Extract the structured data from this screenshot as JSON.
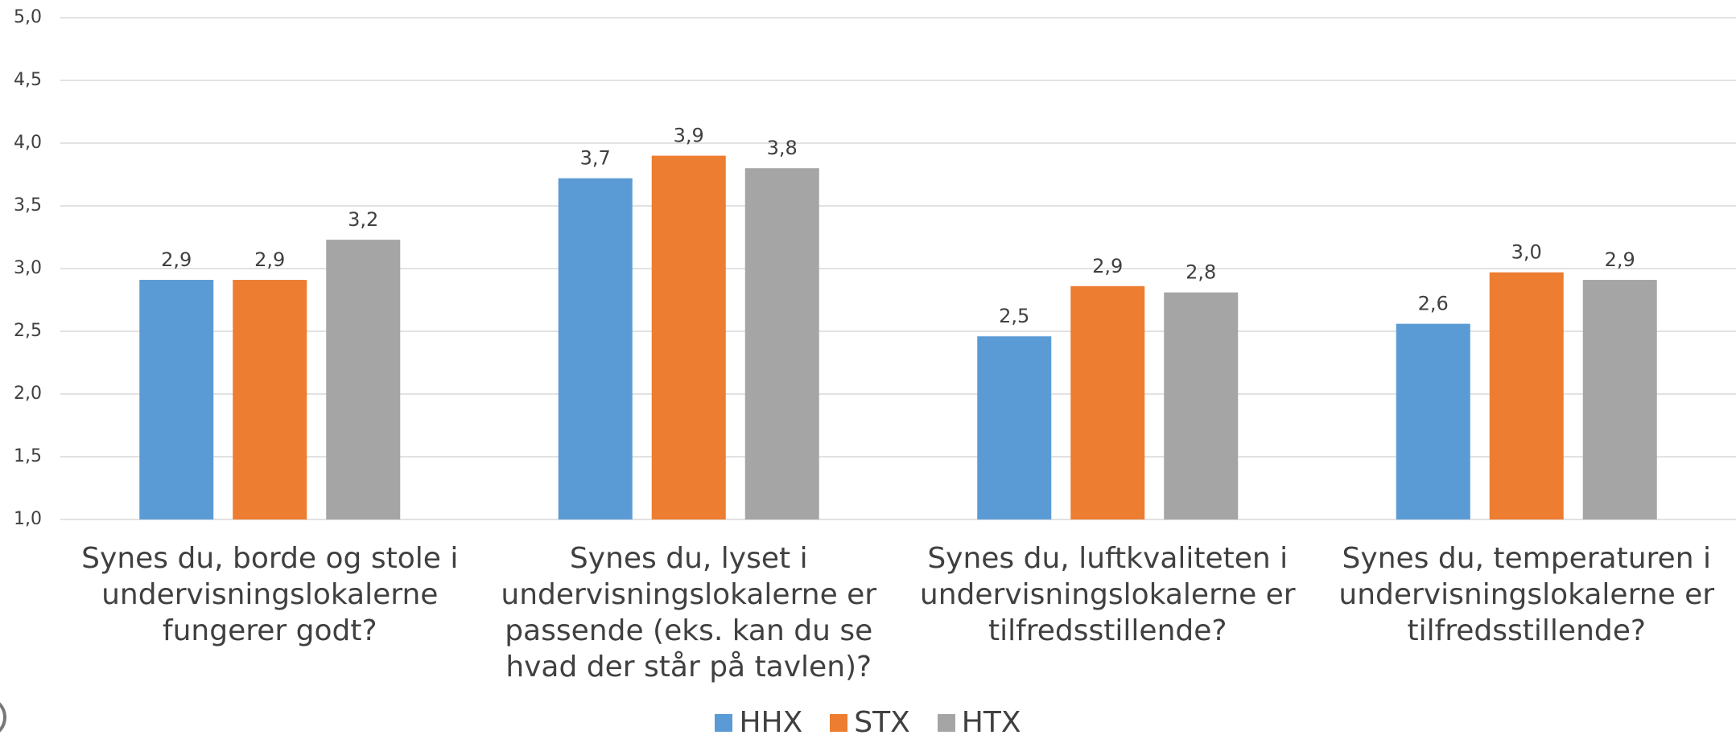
{
  "chart_data": {
    "type": "bar",
    "categories": [
      "Synes du, borde og stole i undervisningslokalerne fungerer godt?",
      "Synes du, lyset i undervisningslokalerne er passende (eks. kan du se hvad der står på tavlen)?",
      "Synes du, luftkvaliteten i undervisningslokalerne er tilfredsstillende?",
      "Synes du, temperaturen i undervisningslokalerne er tilfredsstillende?"
    ],
    "series": [
      {
        "name": "HHX",
        "color": "#5b9bd5",
        "values": [
          2.91,
          3.72,
          2.46,
          2.56
        ],
        "value_labels": [
          "2,9",
          "3,7",
          "2,5",
          "2,6"
        ]
      },
      {
        "name": "STX",
        "color": "#ed7d31",
        "values": [
          2.91,
          3.9,
          2.86,
          2.97
        ],
        "value_labels": [
          "2,9",
          "3,9",
          "2,9",
          "3,0"
        ]
      },
      {
        "name": "HTX",
        "color": "#a5a5a5",
        "values": [
          3.23,
          3.8,
          2.81,
          2.91
        ],
        "value_labels": [
          "3,2",
          "3,8",
          "2,8",
          "2,9"
        ]
      }
    ],
    "ylim": [
      1,
      5
    ],
    "yticks": [
      {
        "value": 1,
        "label": "1,0"
      },
      {
        "value": 1.5,
        "label": "1,5"
      },
      {
        "value": 2,
        "label": "2,0"
      },
      {
        "value": 2.5,
        "label": "2,5"
      },
      {
        "value": 3,
        "label": "3,0"
      },
      {
        "value": 3.5,
        "label": "3,5"
      },
      {
        "value": 4,
        "label": "4,0"
      },
      {
        "value": 4.5,
        "label": "4,5"
      },
      {
        "value": 5,
        "label": "5,0"
      }
    ],
    "grid": true
  }
}
